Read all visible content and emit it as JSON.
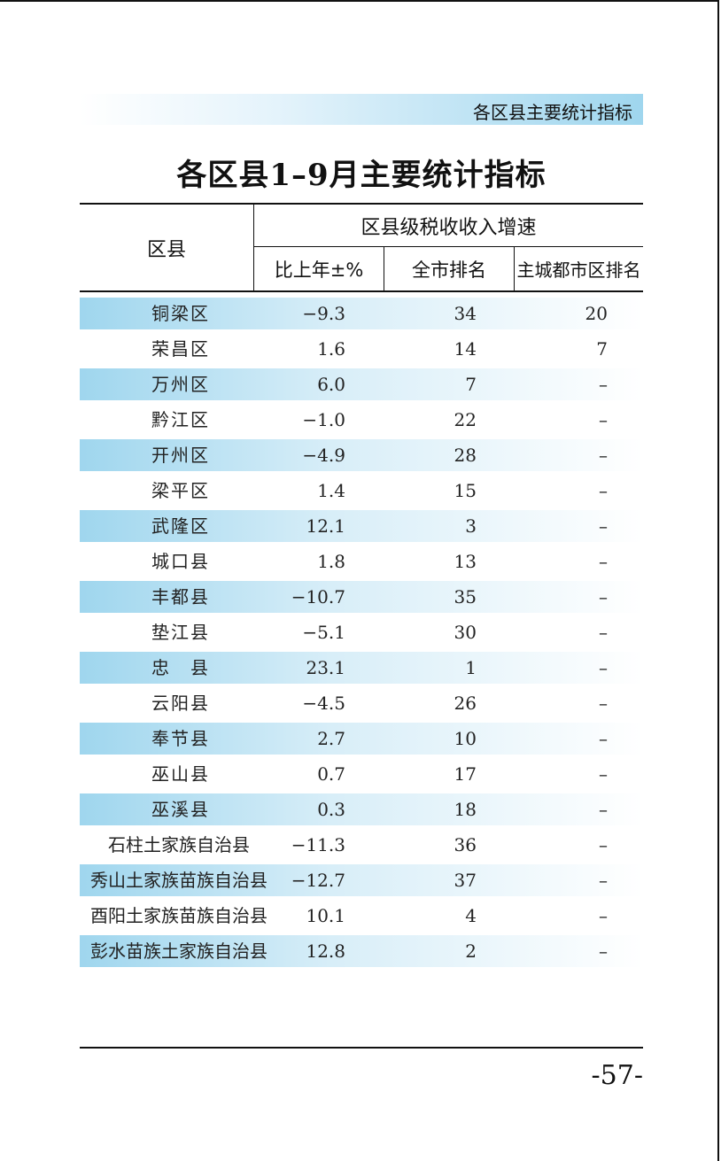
{
  "running_header": "各区县主要统计指标",
  "title": "各区县1–9月主要统计指标",
  "table": {
    "col_region": "区县",
    "group_header": "区县级税收收入增速",
    "col_pct": "比上年±%",
    "col_rank_city": "全市排名",
    "col_rank_main": "主城都市区排名",
    "rows": [
      {
        "name": "铜梁区",
        "pct": "−9.3",
        "rank": "34",
        "main": "20"
      },
      {
        "name": "荣昌区",
        "pct": "1.6",
        "rank": "14",
        "main": "7"
      },
      {
        "name": "万州区",
        "pct": "6.0",
        "rank": "7",
        "main": "–"
      },
      {
        "name": "黔江区",
        "pct": "−1.0",
        "rank": "22",
        "main": "–"
      },
      {
        "name": "开州区",
        "pct": "−4.9",
        "rank": "28",
        "main": "–"
      },
      {
        "name": "梁平区",
        "pct": "1.4",
        "rank": "15",
        "main": "–"
      },
      {
        "name": "武隆区",
        "pct": "12.1",
        "rank": "3",
        "main": "–"
      },
      {
        "name": "城口县",
        "pct": "1.8",
        "rank": "13",
        "main": "–"
      },
      {
        "name": "丰都县",
        "pct": "−10.7",
        "rank": "35",
        "main": "–"
      },
      {
        "name": "垫江县",
        "pct": "−5.1",
        "rank": "30",
        "main": "–"
      },
      {
        "name": "忠　县",
        "pct": "23.1",
        "rank": "1",
        "main": "–"
      },
      {
        "name": "云阳县",
        "pct": "−4.5",
        "rank": "26",
        "main": "–"
      },
      {
        "name": "奉节县",
        "pct": "2.7",
        "rank": "10",
        "main": "–"
      },
      {
        "name": "巫山县",
        "pct": "0.7",
        "rank": "17",
        "main": "–"
      },
      {
        "name": "巫溪县",
        "pct": "0.3",
        "rank": "18",
        "main": "–"
      },
      {
        "name": "石柱土家族自治县",
        "pct": "−11.3",
        "rank": "36",
        "main": "–"
      },
      {
        "name": "秀山土家族苗族自治县",
        "pct": "−12.7",
        "rank": "37",
        "main": "–"
      },
      {
        "name": "酉阳土家族苗族自治县",
        "pct": "10.1",
        "rank": "4",
        "main": "–"
      },
      {
        "name": "彭水苗族土家族自治县",
        "pct": "12.8",
        "rank": "2",
        "main": "–"
      }
    ]
  },
  "page_number": "-57-"
}
